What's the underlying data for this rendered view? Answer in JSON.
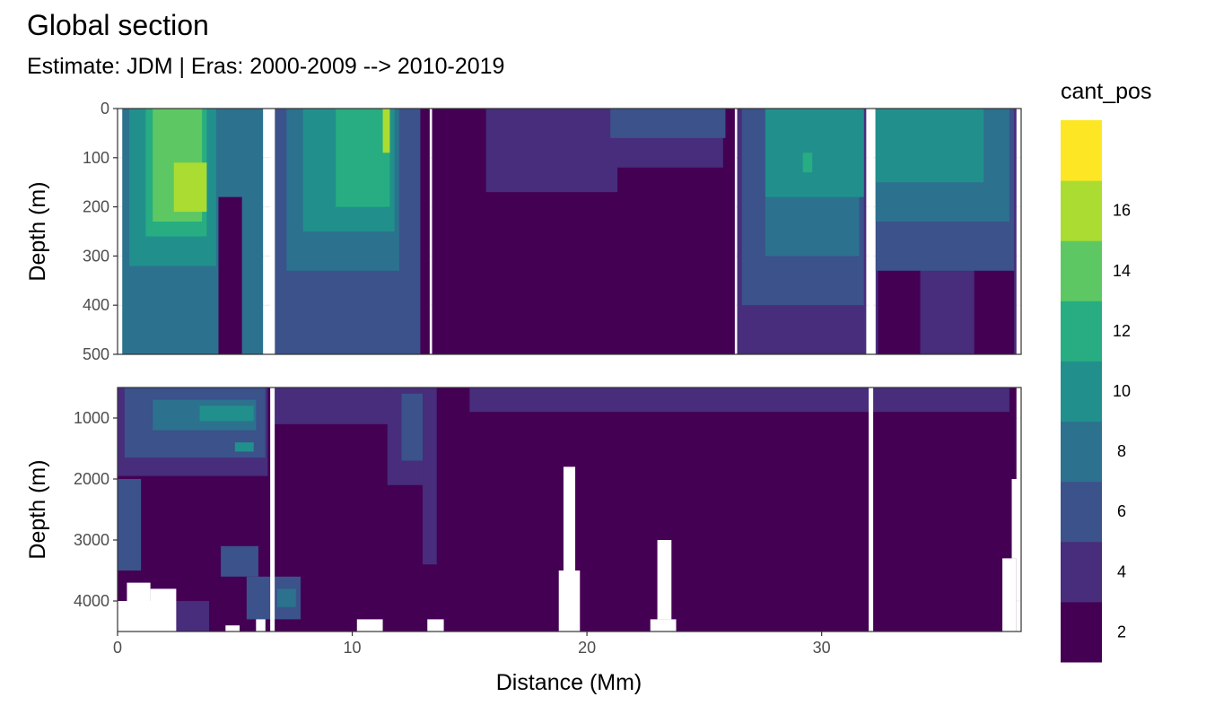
{
  "chart_data": {
    "type": "heatmap",
    "title": "Global section",
    "subtitle": "Estimate: JDM  | Eras: 2000-2009 --> 2010-2019",
    "xlabel": "Distance (Mm)",
    "ylabel": "Depth (m)",
    "xlim": [
      0,
      38.5
    ],
    "x_ticks": [
      0,
      10,
      20,
      30
    ],
    "x_tick_labels": [
      "0",
      "10",
      "20",
      "30"
    ],
    "panels": [
      {
        "name": "upper",
        "ylim": [
          0,
          500
        ],
        "y_ticks": [
          0,
          100,
          200,
          300,
          400,
          500
        ],
        "y_tick_labels": [
          "0",
          "100",
          "200",
          "300",
          "400",
          "500"
        ]
      },
      {
        "name": "lower",
        "ylim": [
          500,
          4500
        ],
        "y_ticks": [
          1000,
          2000,
          3000,
          4000
        ],
        "y_tick_labels": [
          "1000",
          "2000",
          "3000",
          "4000"
        ]
      }
    ],
    "section_breaks_x": [
      6.6,
      32.1
    ],
    "legend": {
      "title": "cant_pos",
      "position": "right",
      "breaks": [
        2,
        4,
        6,
        8,
        10,
        12,
        14,
        16
      ],
      "break_labels": [
        "2",
        "4",
        "6",
        "8",
        "10",
        "12",
        "14",
        "16"
      ],
      "colors": [
        "#440154",
        "#472D7B",
        "#3B528B",
        "#2C728E",
        "#21908C",
        "#27AD81",
        "#5DC863",
        "#AADC32",
        "#FDE725"
      ]
    },
    "grid": true,
    "regions": {
      "upper": [
        {
          "level": 1,
          "x": [
            10.5,
            13.3
          ],
          "depth_top": 0,
          "depth_bottom": 500
        },
        {
          "level": 4,
          "x": [
            0.2,
            6.2
          ],
          "depth_top": 0,
          "depth_bottom": 500
        },
        {
          "level": 5,
          "x": [
            0.5,
            4.2
          ],
          "depth_top": 0,
          "depth_bottom": 320
        },
        {
          "level": 6,
          "x": [
            1.2,
            3.8
          ],
          "depth_top": 0,
          "depth_bottom": 260
        },
        {
          "level": 7,
          "x": [
            1.5,
            3.6
          ],
          "depth_top": 0,
          "depth_bottom": 230
        },
        {
          "level": 8,
          "x": [
            2.4,
            3.8
          ],
          "depth_top": 110,
          "depth_bottom": 210
        },
        {
          "level": 1,
          "x": [
            4.3,
            5.3
          ],
          "depth_top": 180,
          "depth_bottom": 500
        },
        {
          "level": 3,
          "x": [
            6.7,
            12.9
          ],
          "depth_top": 0,
          "depth_bottom": 500
        },
        {
          "level": 4,
          "x": [
            7.2,
            12.0
          ],
          "depth_top": 0,
          "depth_bottom": 330
        },
        {
          "level": 5,
          "x": [
            7.9,
            11.8
          ],
          "depth_top": 0,
          "depth_bottom": 250
        },
        {
          "level": 6,
          "x": [
            9.3,
            11.6
          ],
          "depth_top": 0,
          "depth_bottom": 200
        },
        {
          "level": 8,
          "x": [
            11.3,
            11.6
          ],
          "depth_top": 0,
          "depth_bottom": 90
        },
        {
          "level": 1,
          "x": [
            13.4,
            26.3
          ],
          "depth_top": 0,
          "depth_bottom": 500
        },
        {
          "level": 2,
          "x": [
            15.7,
            21.3
          ],
          "depth_top": 0,
          "depth_bottom": 170
        },
        {
          "level": 2,
          "x": [
            18.7,
            25.8
          ],
          "depth_top": 0,
          "depth_bottom": 120
        },
        {
          "level": 3,
          "x": [
            21.0,
            25.9
          ],
          "depth_top": 0,
          "depth_bottom": 60
        },
        {
          "level": 2,
          "x": [
            26.4,
            31.9
          ],
          "depth_top": 0,
          "depth_bottom": 500
        },
        {
          "level": 3,
          "x": [
            26.6,
            31.8
          ],
          "depth_top": 0,
          "depth_bottom": 400
        },
        {
          "level": 4,
          "x": [
            27.6,
            31.6
          ],
          "depth_top": 0,
          "depth_bottom": 300
        },
        {
          "level": 5,
          "x": [
            27.6,
            31.8
          ],
          "depth_top": 0,
          "depth_bottom": 180
        },
        {
          "level": 6,
          "x": [
            29.2,
            29.6
          ],
          "depth_top": 90,
          "depth_bottom": 130
        },
        {
          "level": 2,
          "x": [
            32.3,
            38.3
          ],
          "depth_top": 0,
          "depth_bottom": 500
        },
        {
          "level": 3,
          "x": [
            32.3,
            38.2
          ],
          "depth_top": 0,
          "depth_bottom": 330
        },
        {
          "level": 4,
          "x": [
            32.3,
            38.0
          ],
          "depth_top": 0,
          "depth_bottom": 230
        },
        {
          "level": 5,
          "x": [
            32.3,
            36.9
          ],
          "depth_top": 0,
          "depth_bottom": 150
        },
        {
          "level": 1,
          "x": [
            32.4,
            34.2
          ],
          "depth_top": 330,
          "depth_bottom": 500
        },
        {
          "level": 1,
          "x": [
            36.5,
            38.2
          ],
          "depth_top": 330,
          "depth_bottom": 500
        }
      ],
      "lower": [
        {
          "level": 1,
          "x": [
            0.0,
            38.3
          ],
          "depth_top": 500,
          "depth_bottom": 4500
        },
        {
          "level": 2,
          "x": [
            0.0,
            6.4
          ],
          "depth_top": 500,
          "depth_bottom": 1950
        },
        {
          "level": 3,
          "x": [
            0.3,
            6.3
          ],
          "depth_top": 500,
          "depth_bottom": 1650
        },
        {
          "level": 4,
          "x": [
            1.5,
            5.9
          ],
          "depth_top": 700,
          "depth_bottom": 1200
        },
        {
          "level": 5,
          "x": [
            3.5,
            5.8
          ],
          "depth_top": 800,
          "depth_bottom": 1050
        },
        {
          "level": 5,
          "x": [
            5.0,
            5.8
          ],
          "depth_top": 1400,
          "depth_bottom": 1550
        },
        {
          "level": 3,
          "x": [
            0.0,
            1.0
          ],
          "depth_top": 2000,
          "depth_bottom": 3500
        },
        {
          "level": 3,
          "x": [
            4.4,
            6.0
          ],
          "depth_top": 3100,
          "depth_bottom": 3600
        },
        {
          "level": 3,
          "x": [
            5.5,
            7.8
          ],
          "depth_top": 3600,
          "depth_bottom": 4300
        },
        {
          "level": 4,
          "x": [
            6.8,
            7.6
          ],
          "depth_top": 3800,
          "depth_bottom": 4100
        },
        {
          "level": 2,
          "x": [
            6.7,
            13.4
          ],
          "depth_top": 500,
          "depth_bottom": 1100
        },
        {
          "level": 2,
          "x": [
            11.5,
            13.3
          ],
          "depth_top": 500,
          "depth_bottom": 2100
        },
        {
          "level": 3,
          "x": [
            12.1,
            13.1
          ],
          "depth_top": 600,
          "depth_bottom": 1700
        },
        {
          "level": 2,
          "x": [
            13.0,
            13.6
          ],
          "depth_top": 500,
          "depth_bottom": 3400
        },
        {
          "level": 2,
          "x": [
            15.0,
            38.0
          ],
          "depth_top": 500,
          "depth_bottom": 900
        },
        {
          "level": 2,
          "x": [
            2.5,
            3.9
          ],
          "depth_top": 4000,
          "depth_bottom": 4500
        }
      ],
      "nodata": [
        {
          "x": [
            0.0,
            2.5
          ],
          "depth_top": 4000,
          "depth_bottom": 4500
        },
        {
          "x": [
            0.4,
            1.4
          ],
          "depth_top": 3700,
          "depth_bottom": 4000
        },
        {
          "x": [
            1.4,
            2.5
          ],
          "depth_top": 3800,
          "depth_bottom": 4000
        },
        {
          "x": [
            4.6,
            5.2
          ],
          "depth_top": 4400,
          "depth_bottom": 4500
        },
        {
          "x": [
            5.9,
            6.3
          ],
          "depth_top": 4300,
          "depth_bottom": 4500
        },
        {
          "x": [
            10.2,
            11.3
          ],
          "depth_top": 4300,
          "depth_bottom": 4500
        },
        {
          "x": [
            13.2,
            13.9
          ],
          "depth_top": 4300,
          "depth_bottom": 4500
        },
        {
          "x": [
            18.8,
            19.7
          ],
          "depth_top": 3500,
          "depth_bottom": 4500
        },
        {
          "x": [
            19.0,
            19.5
          ],
          "depth_top": 1800,
          "depth_bottom": 3500
        },
        {
          "x": [
            22.7,
            23.8
          ],
          "depth_top": 4300,
          "depth_bottom": 4500
        },
        {
          "x": [
            23.0,
            23.6
          ],
          "depth_top": 3000,
          "depth_bottom": 4300
        },
        {
          "x": [
            37.7,
            38.3
          ],
          "depth_top": 3300,
          "depth_bottom": 4500
        },
        {
          "x": [
            38.1,
            38.5
          ],
          "depth_top": 2000,
          "depth_bottom": 3300
        }
      ]
    }
  }
}
